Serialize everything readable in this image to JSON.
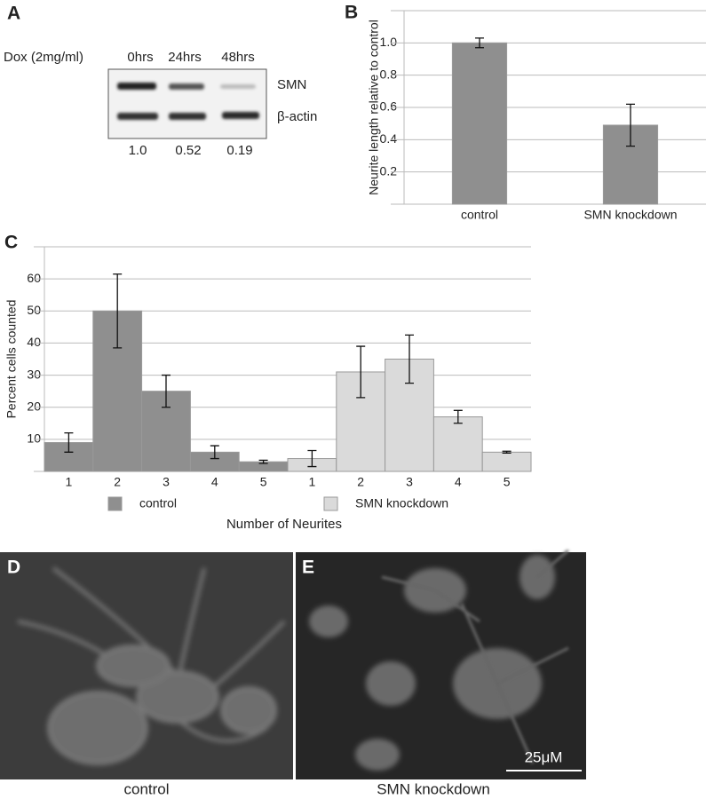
{
  "panel_a": {
    "label": "A",
    "treatment": "Dox (2mg/ml)",
    "timepoints": [
      "0hrs",
      "24hrs",
      "48hrs"
    ],
    "bands": [
      "SMN",
      "β-actin"
    ],
    "quantification": [
      "1.0",
      "0.52",
      "0.19"
    ]
  },
  "chart_data": [
    {
      "type": "bar",
      "panel": "B",
      "ylabel": "Neurite length relative to control",
      "categories": [
        "control",
        "SMN knockdown"
      ],
      "values": [
        1.0,
        0.49
      ],
      "errors": [
        0.03,
        0.13
      ],
      "color": "#8f8f8f",
      "ylim": [
        0,
        1.2
      ],
      "yticks": [
        0.2,
        0.4,
        0.6,
        0.8,
        {
          "value": 1,
          "label": "1.0"
        }
      ],
      "grid": true
    },
    {
      "type": "bar",
      "panel": "C",
      "xlabel": "Number of Neurites",
      "ylabel": "Percent cells counted",
      "categories": [
        "1",
        "2",
        "3",
        "4",
        "5"
      ],
      "series": [
        {
          "name": "control",
          "color": "#8f8f8f",
          "values": [
            9,
            50,
            25,
            6,
            3
          ],
          "errors": [
            3,
            11.5,
            5,
            2,
            0.5
          ]
        },
        {
          "name": "SMN knockdown",
          "color": "#dadada",
          "values": [
            4,
            31,
            35,
            17,
            6
          ],
          "errors": [
            2.5,
            8,
            7.5,
            2,
            0.3
          ]
        }
      ],
      "ylim": [
        0,
        70
      ],
      "yticks": [
        10,
        20,
        30,
        40,
        50,
        60
      ],
      "grid": true
    }
  ],
  "panel_d": {
    "label": "D",
    "caption": "control"
  },
  "panel_e": {
    "label": "E",
    "caption": "SMN knockdown",
    "scale_bar": "25μM"
  }
}
